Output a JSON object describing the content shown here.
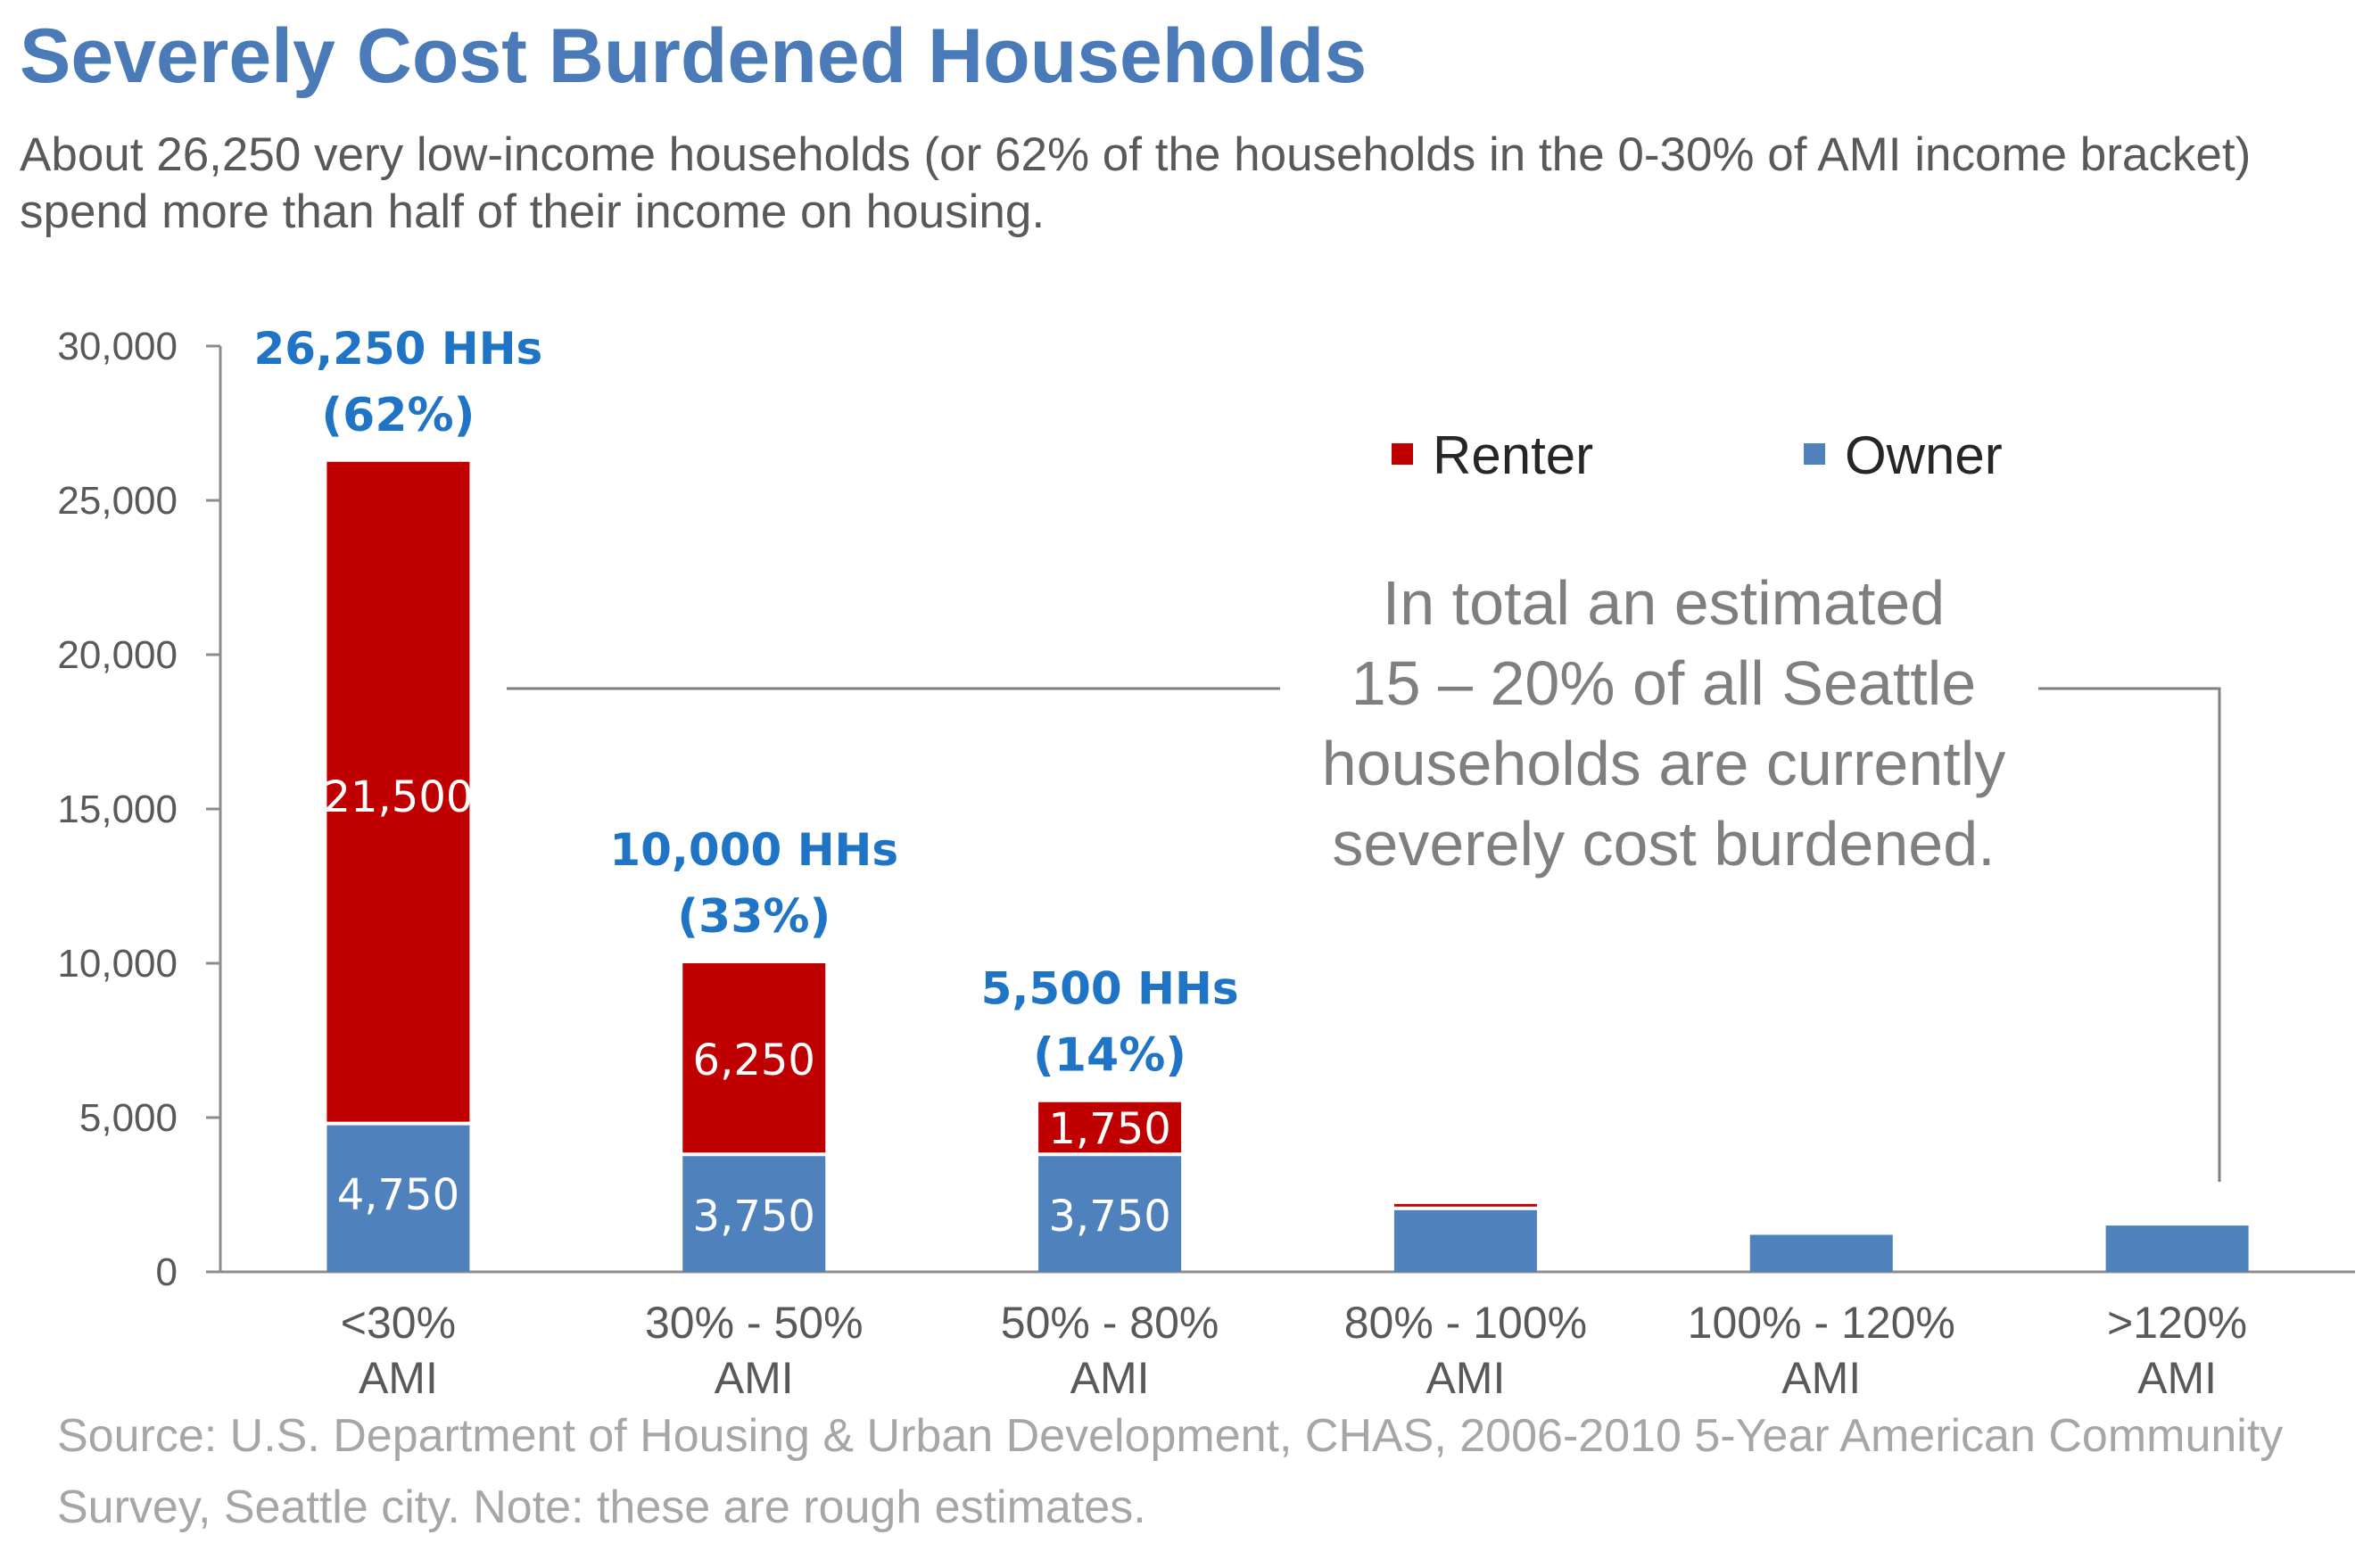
{
  "title": "Severely Cost Burdened Households",
  "subtitle": "About 26,250 very low-income households (or 62% of the households in the 0-30% of AMI income bracket) spend more than half of their income on housing.",
  "source": "Source: U.S. Department of Housing & Urban Development, CHAS, 2006-2010 5-Year American Community Survey, Seattle city.  Note: these are rough estimates.",
  "callout": [
    "In total an estimated",
    "15 – 20% of all Seattle",
    "households are currently",
    "severely cost burdened."
  ],
  "colors": {
    "renter": "#c00000",
    "owner": "#4f81bd",
    "annotation": "#1f74c6",
    "title": "#4a7ab7"
  },
  "chart_data": {
    "type": "bar",
    "stacked": true,
    "categories": [
      [
        "<30%",
        "AMI"
      ],
      [
        "30% - 50%",
        "AMI"
      ],
      [
        "50% - 80%",
        "AMI"
      ],
      [
        "80% - 100%",
        "AMI"
      ],
      [
        "100% - 120%",
        "AMI"
      ],
      [
        ">120%",
        "AMI"
      ]
    ],
    "series": [
      {
        "name": "Owner",
        "color": "#4f81bd",
        "values": [
          4750,
          3750,
          3750,
          2000,
          1200,
          1500
        ],
        "labels": [
          "4,750",
          "3,750",
          "3,750",
          "",
          "",
          ""
        ]
      },
      {
        "name": "Renter",
        "color": "#c00000",
        "values": [
          21500,
          6250,
          1750,
          200,
          0,
          0
        ],
        "labels": [
          "21,500",
          "6,250",
          "1,750",
          "",
          "",
          ""
        ]
      }
    ],
    "annotations": [
      {
        "category": 0,
        "line1": "26,250 HHs",
        "line2": "(62%)"
      },
      {
        "category": 1,
        "line1": "10,000 HHs",
        "line2": "(33%)"
      },
      {
        "category": 2,
        "line1": "5,500 HHs",
        "line2": "(14%)"
      }
    ],
    "ylim": [
      0,
      30000
    ],
    "yticks": [
      0,
      5000,
      10000,
      15000,
      20000,
      25000,
      30000
    ],
    "ytick_labels": [
      "0",
      "5,000",
      "10,000",
      "15,000",
      "20,000",
      "25,000",
      "30,000"
    ],
    "legend": {
      "position": "top-right",
      "order": [
        "Renter",
        "Owner"
      ]
    },
    "grid": false,
    "xlabel": "",
    "ylabel": ""
  }
}
